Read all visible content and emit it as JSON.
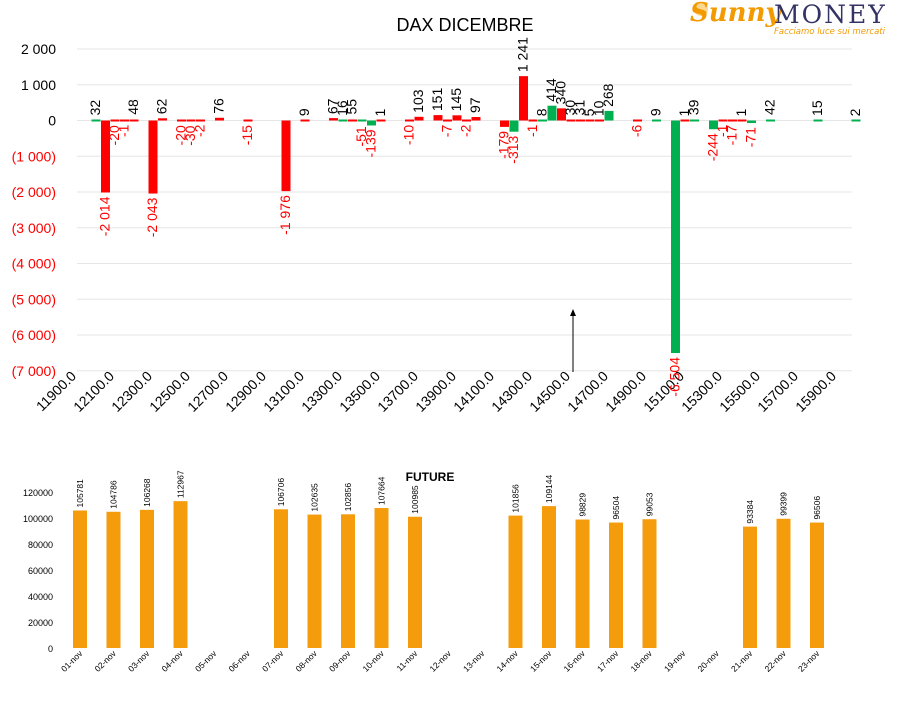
{
  "colors": {
    "negative": "#ff0000",
    "positive": "#00b050",
    "future_bar": "#f59c0c",
    "text": "#000000",
    "grid": "#e6e6e6"
  },
  "logo": {
    "brand_part1": "Sunny",
    "brand_part2": "MONEY",
    "tagline": "Facciamo luce sui mercati"
  },
  "chart_data": [
    {
      "type": "bar",
      "title": "DAX DICEMBRE",
      "ylim": [
        -7000,
        2000
      ],
      "yticks": [
        2000,
        1000,
        0,
        -1000,
        -2000,
        -3000,
        -4000,
        -5000,
        -6000,
        -7000
      ],
      "ytick_labels": [
        "2 000",
        "1 000",
        "0",
        "(1 000)",
        "(2 000)",
        "(3 000)",
        "(4 000)",
        "(5 000)",
        "(6 000)",
        "(7 000)"
      ],
      "xtick_labels": [
        "11900.0",
        "12100.0",
        "12300.0",
        "12500.0",
        "12700.0",
        "12900.0",
        "13100.0",
        "13300.0",
        "13500.0",
        "13700.0",
        "13900.0",
        "14100.0",
        "14300.0",
        "14500.0",
        "14700.0",
        "14900.0",
        "15100.0",
        "15300.0",
        "15500.0",
        "15700.0",
        "15900.0"
      ],
      "x_start": 11900,
      "x_step": 50,
      "grid": true,
      "annotation": "arrow at 14500",
      "series": [
        {
          "values": [
            [
              12000,
              32
            ],
            [
              12050,
              -2014
            ],
            [
              12100,
              -20
            ],
            [
              12150,
              -1
            ],
            [
              12200,
              48
            ],
            [
              12300,
              -2043
            ],
            [
              12350,
              62
            ],
            [
              12450,
              -20
            ],
            [
              12500,
              -30
            ],
            [
              12550,
              -2
            ],
            [
              12650,
              76
            ],
            [
              12800,
              -15
            ],
            [
              13000,
              -1976
            ],
            [
              13100,
              9
            ],
            [
              13250,
              67
            ],
            [
              13300,
              16
            ],
            [
              13350,
              55
            ],
            [
              13400,
              -51
            ],
            [
              13450,
              -139
            ],
            [
              13500,
              1
            ],
            [
              13650,
              -10
            ],
            [
              13700,
              103
            ],
            [
              13800,
              151
            ],
            [
              13850,
              -7
            ],
            [
              13900,
              145
            ],
            [
              13950,
              -2
            ],
            [
              14000,
              97
            ],
            [
              14150,
              -179
            ],
            [
              14200,
              -313
            ],
            [
              14250,
              1241
            ],
            [
              14300,
              -1
            ],
            [
              14350,
              8
            ],
            [
              14400,
              414
            ],
            [
              14450,
              340
            ],
            [
              14500,
              30
            ],
            [
              14550,
              31
            ],
            [
              14600,
              5
            ],
            [
              14650,
              10
            ],
            [
              14700,
              268
            ],
            [
              14850,
              -6
            ],
            [
              14950,
              9
            ],
            [
              15050,
              -6504
            ],
            [
              15100,
              1
            ],
            [
              15150,
              39
            ],
            [
              15250,
              -244
            ],
            [
              15300,
              -1
            ],
            [
              15350,
              -17
            ],
            [
              15400,
              1
            ],
            [
              15450,
              -71
            ],
            [
              15550,
              42
            ],
            [
              15800,
              15
            ],
            [
              16000,
              2
            ]
          ]
        }
      ]
    },
    {
      "type": "bar",
      "title": "FUTURE",
      "ylim": [
        0,
        120000
      ],
      "yticks": [
        0,
        20000,
        40000,
        60000,
        80000,
        100000,
        120000
      ],
      "categories": [
        "01-nov",
        "02-nov",
        "03-nov",
        "04-nov",
        "05-nov",
        "06-nov",
        "07-nov",
        "08-nov",
        "09-nov",
        "10-nov",
        "11-nov",
        "12-nov",
        "13-nov",
        "14-nov",
        "15-nov",
        "16-nov",
        "17-nov",
        "18-nov",
        "19-nov",
        "20-nov",
        "21-nov",
        "22-nov",
        "23-nov"
      ],
      "values": [
        105781,
        104786,
        106268,
        112967,
        null,
        null,
        106706,
        102635,
        102856,
        107664,
        100985,
        null,
        null,
        101856,
        109144,
        98829,
        96504,
        99053,
        null,
        null,
        93384,
        99399,
        96506
      ],
      "grid": false
    }
  ]
}
